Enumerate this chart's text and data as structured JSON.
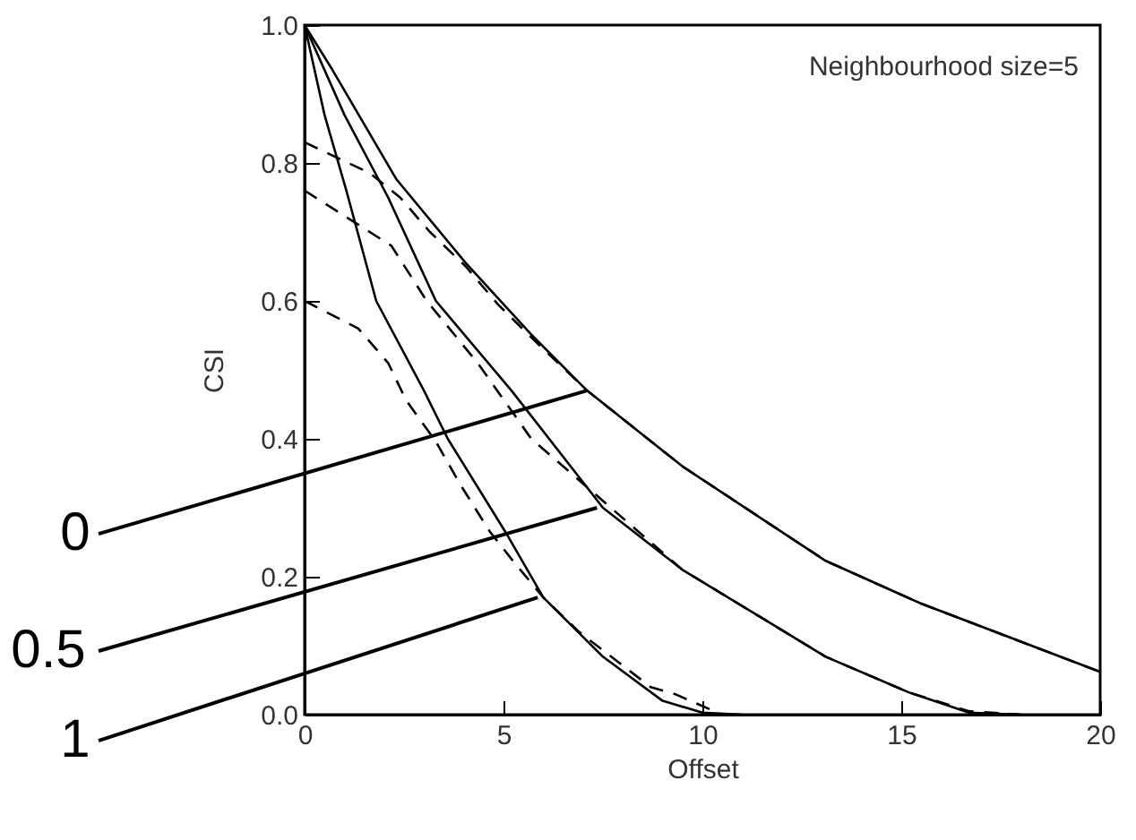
{
  "chart_data": {
    "type": "line",
    "title": "Neighbourhood size=5",
    "xlabel": "Offset",
    "ylabel": "CSI",
    "xlim": [
      0,
      20
    ],
    "xticks": [
      0,
      5,
      10,
      15,
      20
    ],
    "ylim": [
      0,
      1
    ],
    "yticks": [
      {
        "value": 0,
        "label": "0.0"
      },
      {
        "value": 0.2,
        "label": "0.2"
      },
      {
        "value": 0.4,
        "label": "0.4"
      },
      {
        "value": 0.6,
        "label": "0.6"
      },
      {
        "value": 0.8,
        "label": "0.8"
      },
      {
        "value": 1,
        "label": "1.0"
      }
    ],
    "series": [
      {
        "color": "#000000",
        "line_style": "solid",
        "x": [
          0,
          0.7,
          2.3,
          4.05,
          5.7,
          7.1,
          9.5,
          13.1,
          15.5,
          20
        ],
        "values": [
          1,
          0.935,
          0.777,
          0.655,
          0.551,
          0.47,
          0.36,
          0.223,
          0.161,
          0.062
        ]
      },
      {
        "color": "#000000",
        "line_style": "solid",
        "x": [
          0,
          1,
          2.1,
          3.3,
          5.2,
          7.5,
          9.5,
          11.5,
          13.1,
          15.2,
          16.7,
          18
        ],
        "values": [
          1,
          0.87,
          0.75,
          0.6,
          0.47,
          0.3,
          0.21,
          0.14,
          0.084,
          0.032,
          0.003,
          0
        ]
      },
      {
        "color": "#000000",
        "line_style": "solid",
        "x": [
          0,
          0.5,
          1.05,
          1.8,
          3,
          3.6,
          5.1,
          6,
          7.5,
          9,
          10,
          11
        ],
        "values": [
          1,
          0.87,
          0.76,
          0.6,
          0.47,
          0.4,
          0.26,
          0.17,
          0.084,
          0.02,
          0.003,
          0
        ]
      },
      {
        "color": "#000000",
        "line_style": "dashed",
        "x": [
          0,
          1.65,
          2.4,
          3.15,
          4.05,
          4.86,
          5.77,
          7.1,
          9.5,
          13.1,
          15.5,
          20
        ],
        "values": [
          0.83,
          0.785,
          0.75,
          0.7,
          0.65,
          0.595,
          0.543,
          0.47,
          0.36,
          0.223,
          0.161,
          0.062
        ]
      },
      {
        "color": "#000000",
        "line_style": "dashed",
        "x": [
          0,
          2.18,
          3.07,
          4.35,
          5.7,
          6.9,
          9.5,
          11.5,
          13.1,
          15.2,
          16.7,
          18
        ],
        "values": [
          0.76,
          0.68,
          0.6,
          0.51,
          0.4,
          0.34,
          0.21,
          0.14,
          0.084,
          0.032,
          0.005,
          0
        ]
      },
      {
        "color": "#000000",
        "line_style": "dashed",
        "x": [
          0,
          1.35,
          2.1,
          2.55,
          3.3,
          3.9,
          4.65,
          5.25,
          6,
          6.9,
          8.7,
          9.3,
          10.5
        ],
        "values": [
          0.6,
          0.56,
          0.51,
          0.456,
          0.396,
          0.335,
          0.266,
          0.222,
          0.17,
          0.12,
          0.04,
          0.03,
          0
        ]
      }
    ],
    "annotations": [
      {
        "text": "0",
        "x": 7.1,
        "y": 0.47
      },
      {
        "text": "0.5",
        "x": 7.35,
        "y": 0.3
      },
      {
        "text": "1",
        "x": 5.86,
        "y": 0.17
      }
    ]
  }
}
